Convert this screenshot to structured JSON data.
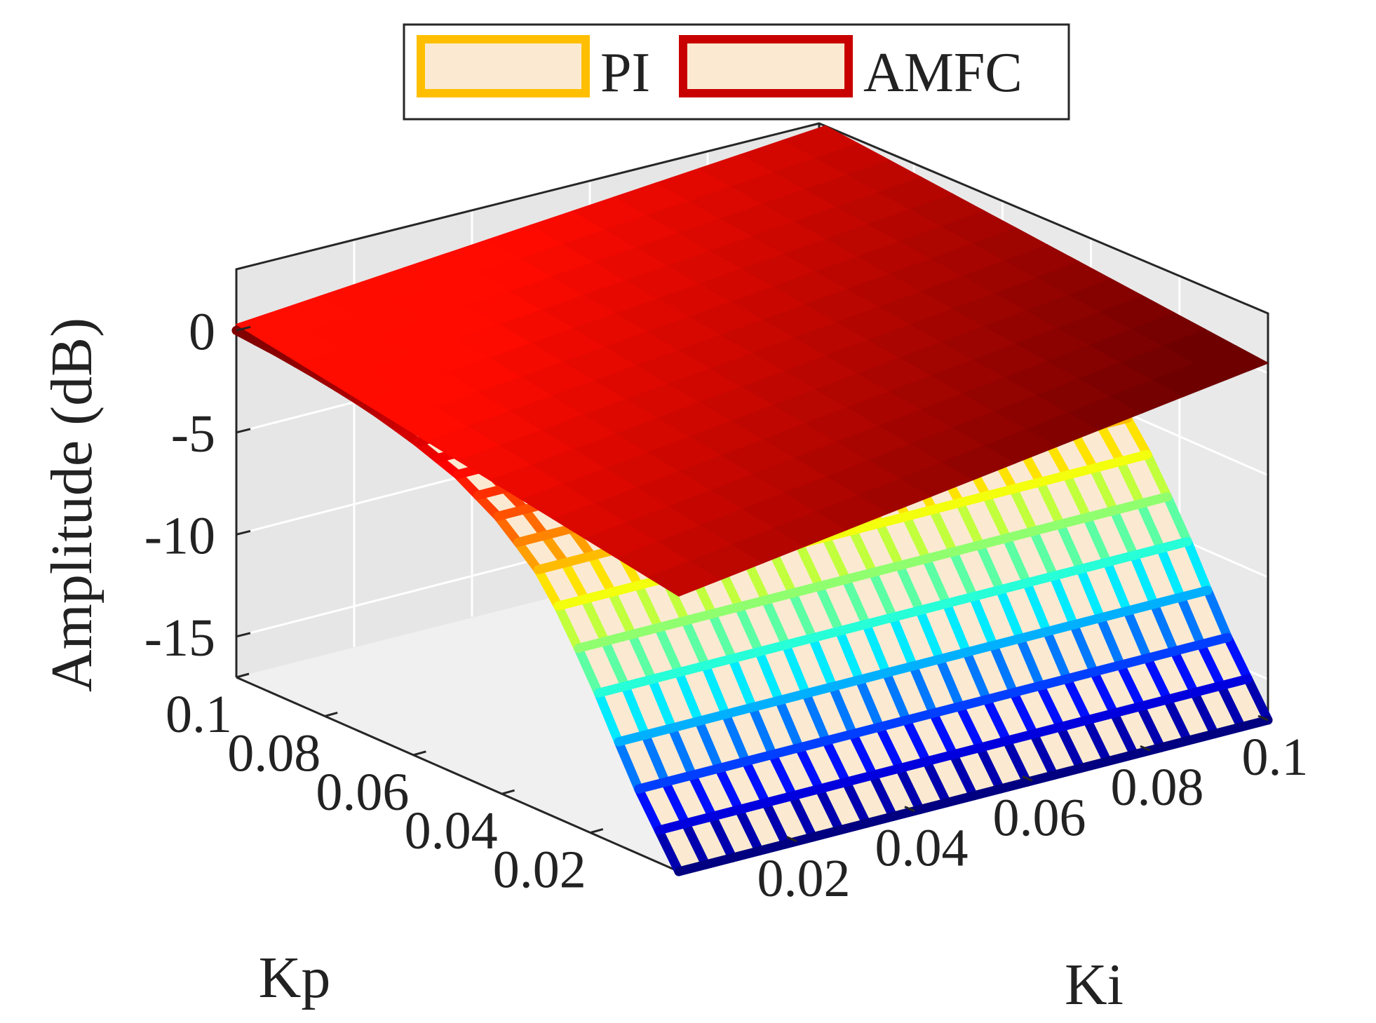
{
  "chart_data": {
    "type": "surface3d",
    "title": "",
    "xlabel": "Kp",
    "ylabel": "Ki",
    "zlabel": "Amplitude (dB)",
    "xlim": [
      0,
      0.1
    ],
    "ylim": [
      0,
      0.1
    ],
    "zlim": [
      -17,
      3
    ],
    "kp_ticks": [
      "0.02",
      "0.04",
      "0.06",
      "0.08",
      "0.1"
    ],
    "ki_ticks": [
      "0.02",
      "0.04",
      "0.06",
      "0.08",
      "0.1"
    ],
    "z_ticks": [
      {
        "value": 0,
        "label": "0"
      },
      {
        "value": -5,
        "label": "-5"
      },
      {
        "value": -10,
        "label": "-10"
      },
      {
        "value": -15,
        "label": "-15"
      }
    ],
    "grid": true,
    "legend": {
      "location": "top-center",
      "entries": [
        {
          "label": "PI",
          "edge_color": "#ffbf00",
          "face_color": "#fbead1"
        },
        {
          "label": "AMFC",
          "edge_color": "#c80000",
          "face_color": "#fbead1"
        }
      ]
    },
    "series": [
      {
        "name": "PI",
        "style": "wireframe-surface",
        "face_color": "#fbead1",
        "colormap": "jet",
        "color_range": [
          -17,
          0
        ],
        "description_of_shape": "amplitude near 0 dB at Kp=0.1, rolling off to about -17 dB as Kp approaches 0; nearly constant along Ki",
        "kp": [
          0.0,
          0.01,
          0.02,
          0.03,
          0.04,
          0.05,
          0.06,
          0.07,
          0.08,
          0.09,
          0.1
        ],
        "amplitude_db": [
          -17.0,
          -13.5,
          -9.2,
          -5.6,
          -3.6,
          -2.3,
          -1.5,
          -0.9,
          -0.5,
          -0.2,
          0.0
        ]
      },
      {
        "name": "AMFC",
        "style": "shaded-surface",
        "colormap": "red-to-darkred",
        "description_of_shape": "flat sheet near 0 dB across the whole Kp-Ki plane, slightly lower near Kp=0",
        "corners": [
          {
            "kp": 0.1,
            "ki": 0.0,
            "amplitude_db": 0.3
          },
          {
            "kp": 0.1,
            "ki": 0.1,
            "amplitude_db": 2.6
          },
          {
            "kp": 0.0,
            "ki": 0.1,
            "amplitude_db": 0.5
          },
          {
            "kp": 0.0,
            "ki": 0.0,
            "amplitude_db": -3.5
          }
        ]
      }
    ]
  }
}
